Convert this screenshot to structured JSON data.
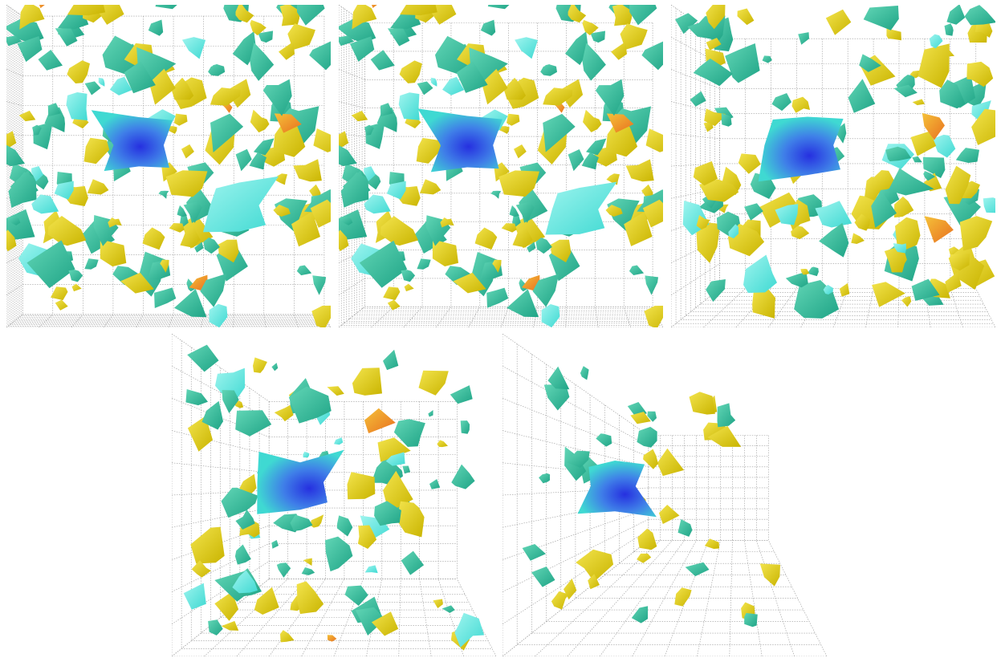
{
  "figure": {
    "panels": [
      {
        "id": "panel-1",
        "frame": 1
      },
      {
        "id": "panel-2",
        "frame": 2
      },
      {
        "id": "panel-3",
        "frame": 3
      },
      {
        "id": "panel-4",
        "frame": 4
      },
      {
        "id": "panel-5",
        "frame": 5
      }
    ],
    "colors": {
      "yellow": "#c9b400",
      "green": "#1fa486",
      "cyan": "#3fd9d2",
      "blue": "#2630e0",
      "orange": "#e8701f",
      "grid": "#9a9a9a"
    }
  }
}
